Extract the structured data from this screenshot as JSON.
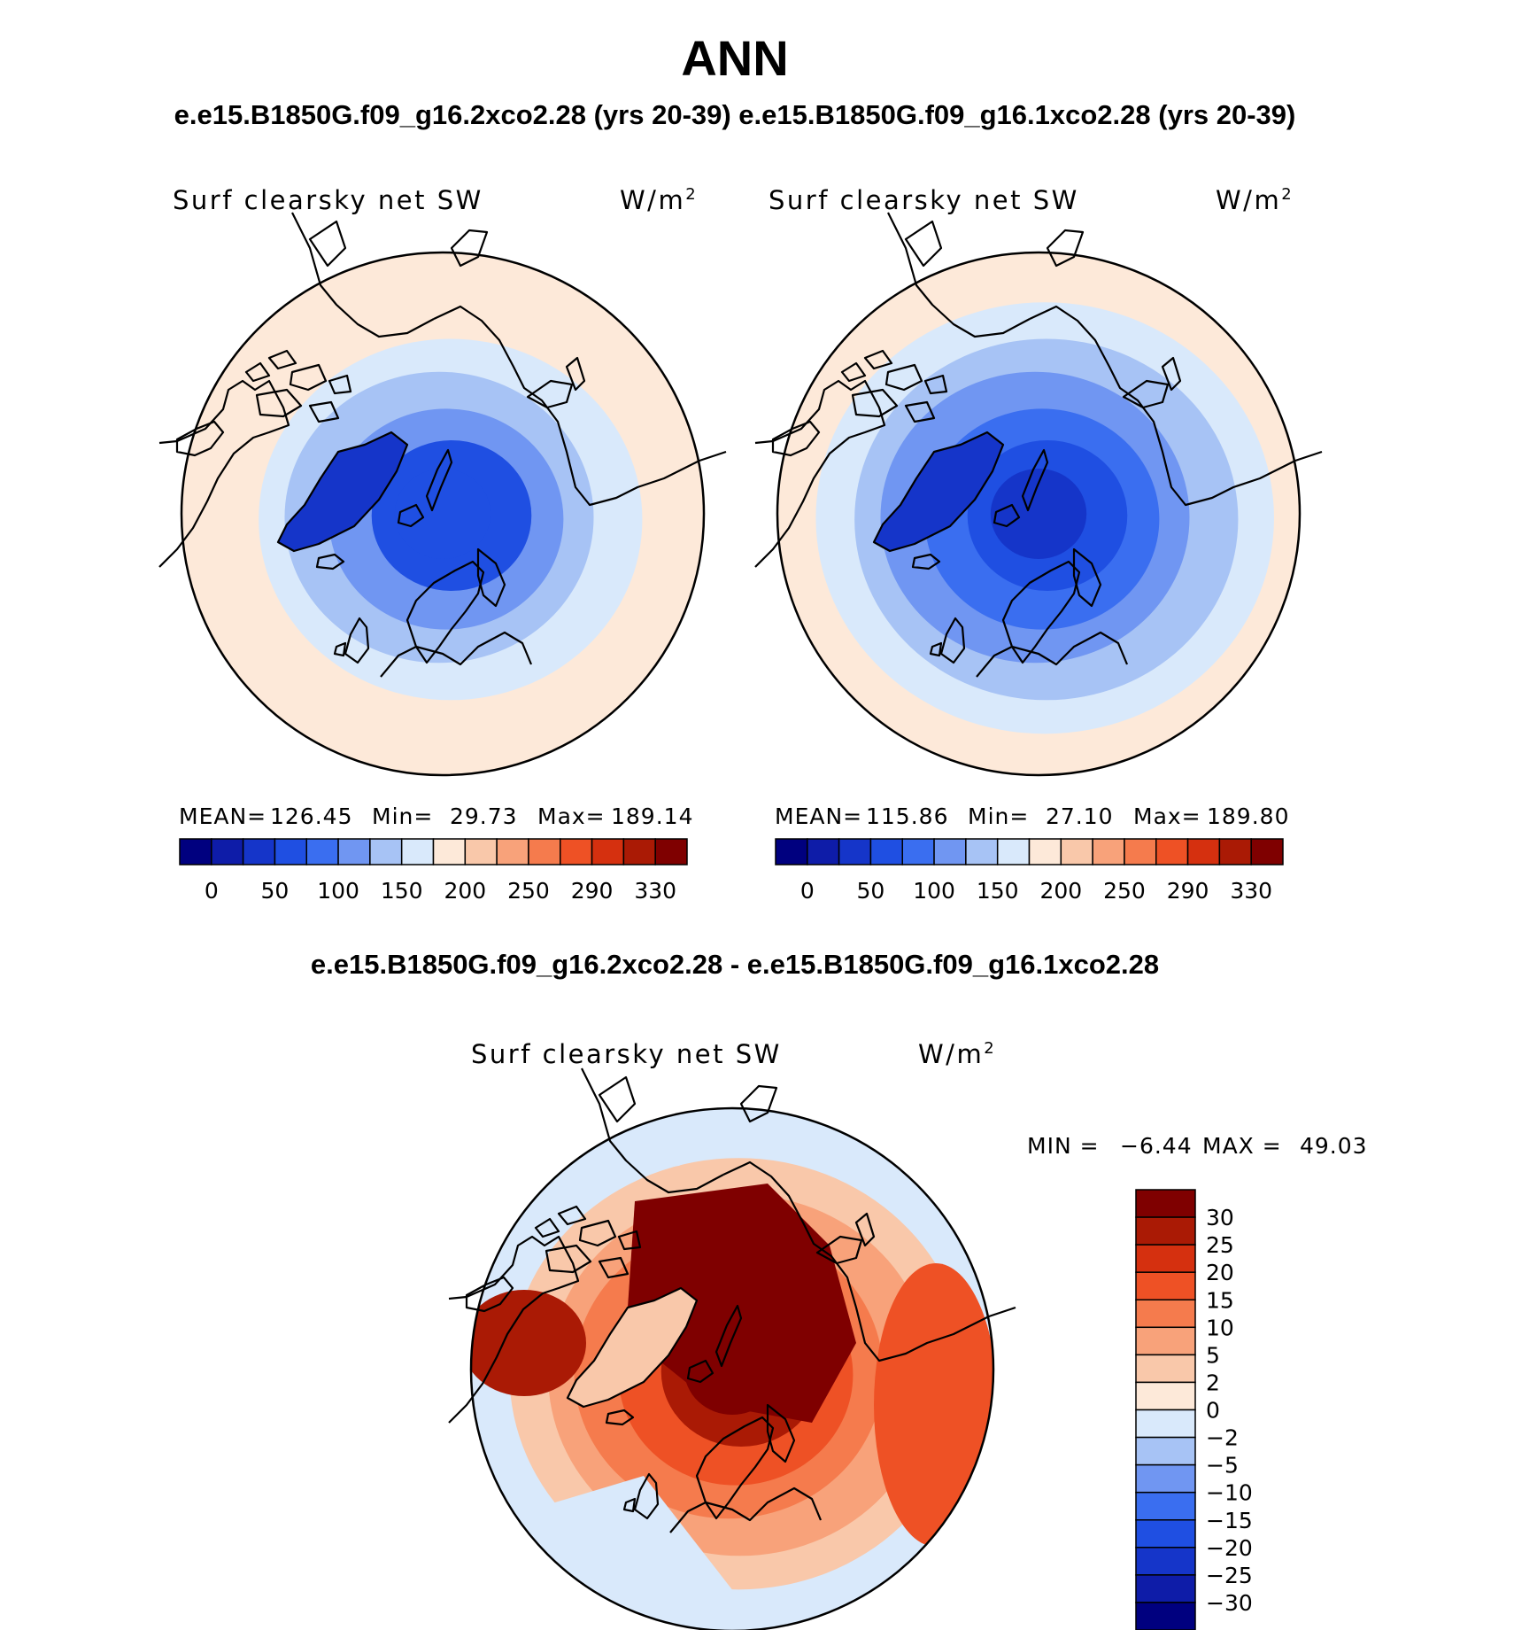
{
  "figure": {
    "title": "ANN",
    "top_subtitle": "e.e15.B1850G.f09_g16.2xco2.28 (yrs 20-39) e.e15.B1850G.f09_g16.1xco2.28 (yrs 20-39)",
    "diff_subtitle": "e.e15.B1850G.f09_g16.2xco2.28 - e.e15.B1850G.f09_g16.1xco2.28"
  },
  "chart_data": [
    {
      "type": "heatmap",
      "projection": "north-polar-stereographic",
      "case": "e.e15.B1850G.f09_g16.2xco2.28 (yrs 20-39)",
      "variable": "Surf clearsky net SW",
      "units": "W/m",
      "units_exp": "2",
      "stats": {
        "mean_label": "MEAN=",
        "mean": "126.45",
        "min_label": "Min=",
        "min": "29.73",
        "max_label": "Max=",
        "max": "189.14"
      },
      "colorbar": {
        "orientation": "horizontal",
        "colors": [
          "#00007f",
          "#0e1ca8",
          "#1535c9",
          "#1f4fe2",
          "#3a6ef0",
          "#7096f2",
          "#a7c3f5",
          "#d9e9fb",
          "#fde9d9",
          "#f9c8aa",
          "#f8a27a",
          "#f57b4d",
          "#ee5125",
          "#d5300f",
          "#aa1a05",
          "#7f0000"
        ],
        "tick_labels": [
          "0",
          "50",
          "100",
          "150",
          "200",
          "250",
          "290",
          "330"
        ]
      },
      "field": {
        "ring_values": [
          50,
          65,
          100,
          130,
          150,
          175,
          195
        ],
        "greenland_value": 40
      }
    },
    {
      "type": "heatmap",
      "projection": "north-polar-stereographic",
      "case": "e.e15.B1850G.f09_g16.1xco2.28 (yrs 20-39)",
      "variable": "Surf clearsky net SW",
      "units": "W/m",
      "units_exp": "2",
      "stats": {
        "mean_label": "MEAN=",
        "mean": "115.86",
        "min_label": "Min=",
        "min": "27.10",
        "max_label": "Max=",
        "max": "189.80"
      },
      "colorbar": {
        "orientation": "horizontal",
        "colors": [
          "#00007f",
          "#0e1ca8",
          "#1535c9",
          "#1f4fe2",
          "#3a6ef0",
          "#7096f2",
          "#a7c3f5",
          "#d9e9fb",
          "#fde9d9",
          "#f9c8aa",
          "#f8a27a",
          "#f57b4d",
          "#ee5125",
          "#d5300f",
          "#aa1a05",
          "#7f0000"
        ],
        "tick_labels": [
          "0",
          "50",
          "100",
          "150",
          "200",
          "250",
          "290",
          "330"
        ]
      },
      "field": {
        "ring_values": [
          45,
          55,
          85,
          115,
          140,
          165,
          192
        ],
        "greenland_value": 35
      }
    },
    {
      "type": "heatmap",
      "projection": "north-polar-stereographic",
      "case": "difference",
      "variable": "Surf clearsky net SW",
      "units": "W/m",
      "units_exp": "2",
      "stats": {
        "min_label": "MIN =",
        "min": "−6.44",
        "max_label": "MAX =",
        "max": "49.03"
      },
      "colorbar": {
        "orientation": "vertical",
        "colors_top_to_bottom": [
          "#7f0000",
          "#aa1a05",
          "#d5300f",
          "#ee5125",
          "#f57b4d",
          "#f8a27a",
          "#f9c8aa",
          "#fde9d9",
          "#d9e9fb",
          "#a7c3f5",
          "#7096f2",
          "#3a6ef0",
          "#1f4fe2",
          "#1535c9",
          "#0e1ca8",
          "#00007f"
        ],
        "tick_labels_top_to_bottom": [
          "30",
          "25",
          "20",
          "15",
          "10",
          "5",
          "2",
          "0",
          "−2",
          "−5",
          "−10",
          "−15",
          "−20",
          "−25",
          "−30"
        ]
      },
      "field": {
        "ring_values": [
          35,
          28,
          18,
          12,
          8,
          4,
          -1
        ],
        "greenland_value": 3
      }
    }
  ]
}
